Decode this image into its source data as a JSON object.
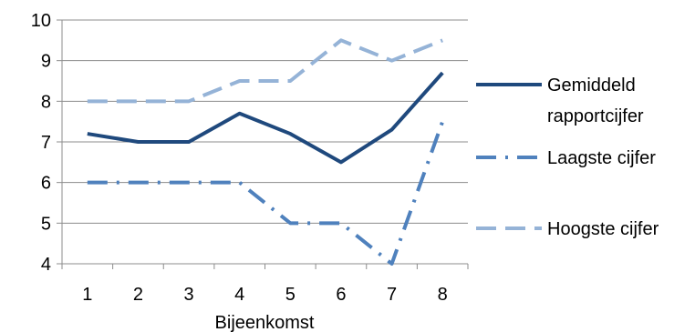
{
  "chart_data": {
    "type": "line",
    "title": "",
    "xlabel": "Bijeenkomst",
    "ylabel": "",
    "categories": [
      "1",
      "2",
      "3",
      "4",
      "5",
      "6",
      "7",
      "8"
    ],
    "ylim": [
      4,
      10
    ],
    "yticks": [
      "4",
      "5",
      "6",
      "7",
      "8",
      "9",
      "10"
    ],
    "grid": "horizontal",
    "legend_position": "right",
    "series": [
      {
        "name": "Gemiddeld rapportcijfer",
        "legend_lines": [
          "Gemiddeld",
          "rapportcijfer"
        ],
        "values": [
          7.2,
          7.0,
          7.0,
          7.7,
          7.2,
          6.5,
          7.3,
          8.7
        ],
        "color": "#1f497d",
        "style": "solid"
      },
      {
        "name": "Laagste cijfer",
        "legend_lines": [
          "Laagste cijfer"
        ],
        "values": [
          6.0,
          6.0,
          6.0,
          6.0,
          5.0,
          5.0,
          4.0,
          7.5
        ],
        "color": "#4f81bd",
        "style": "dash-dot"
      },
      {
        "name": "Hoogste cijfer",
        "legend_lines": [
          "Hoogste cijfer"
        ],
        "values": [
          8.0,
          8.0,
          8.0,
          8.5,
          8.5,
          9.5,
          9.0,
          9.5
        ],
        "color": "#95b3d7",
        "style": "dashed"
      }
    ]
  }
}
